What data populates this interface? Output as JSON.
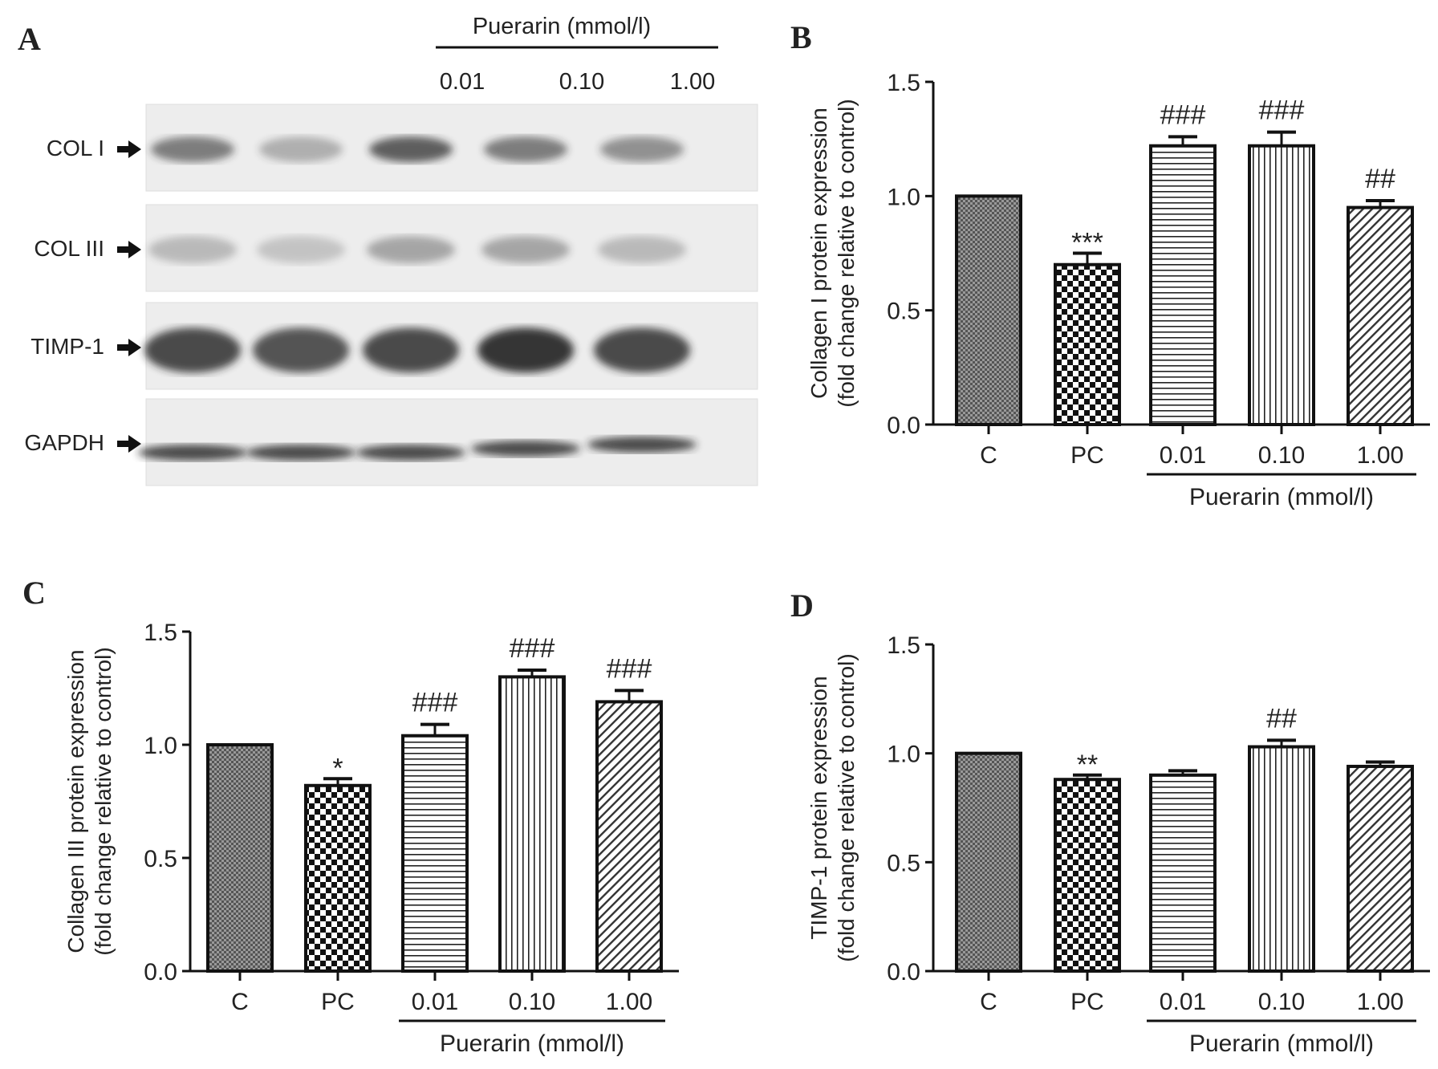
{
  "panel_a": {
    "letter": "A",
    "treatment_label": "Puerarin (mmol/l)",
    "lane_labels": [
      "0.01",
      "0.10",
      "1.00"
    ],
    "rows": [
      "COL I",
      "COL III",
      "TIMP-1",
      "GAPDH"
    ],
    "arrow_icon": "right-arrow-icon"
  },
  "chart_data": [
    {
      "panel": "B",
      "type": "bar",
      "categories": [
        "C",
        "PC",
        "0.01",
        "0.10",
        "1.00"
      ],
      "values": [
        1.0,
        0.7,
        1.22,
        1.22,
        0.95
      ],
      "errors": [
        0,
        0.05,
        0.04,
        0.06,
        0.03
      ],
      "annotations": [
        "",
        "***",
        "###",
        "###",
        "##"
      ],
      "patterns": [
        "fine-crosshatch",
        "checkerboard",
        "horizontal-lines",
        "vertical-lines",
        "diagonal-lines"
      ],
      "ylabel_line1": "Collagen I protein expression",
      "ylabel_line2": "(fold change relative to control)",
      "group_label": "Puerarin (mmol/l)",
      "ylim": [
        0,
        1.5
      ],
      "yticks": [
        "0.0",
        "0.5",
        "1.0",
        "1.5"
      ],
      "grid": false
    },
    {
      "panel": "C",
      "type": "bar",
      "categories": [
        "C",
        "PC",
        "0.01",
        "0.10",
        "1.00"
      ],
      "values": [
        1.0,
        0.82,
        1.04,
        1.3,
        1.19
      ],
      "errors": [
        0,
        0.03,
        0.05,
        0.03,
        0.05
      ],
      "annotations": [
        "",
        "*",
        "###",
        "###",
        "###"
      ],
      "patterns": [
        "fine-crosshatch",
        "checkerboard",
        "horizontal-lines",
        "vertical-lines",
        "diagonal-lines"
      ],
      "ylabel_line1": "Collagen III protein expression",
      "ylabel_line2": "(fold change relative to control)",
      "group_label": "Puerarin (mmol/l)",
      "ylim": [
        0,
        1.5
      ],
      "yticks": [
        "0.0",
        "0.5",
        "1.0",
        "1.5"
      ],
      "grid": false
    },
    {
      "panel": "D",
      "type": "bar",
      "categories": [
        "C",
        "PC",
        "0.01",
        "0.10",
        "1.00"
      ],
      "values": [
        1.0,
        0.88,
        0.9,
        1.03,
        0.94
      ],
      "errors": [
        0,
        0.02,
        0.02,
        0.03,
        0.02
      ],
      "annotations": [
        "",
        "**",
        "",
        "##",
        ""
      ],
      "patterns": [
        "fine-crosshatch",
        "checkerboard",
        "horizontal-lines",
        "vertical-lines",
        "diagonal-lines"
      ],
      "ylabel_line1": "TIMP-1  protein expression",
      "ylabel_line2": "(fold change relative to control)",
      "group_label": "Puerarin (mmol/l)",
      "ylim": [
        0,
        1.5
      ],
      "yticks": [
        "0.0",
        "0.5",
        "1.0",
        "1.5"
      ],
      "grid": false
    }
  ]
}
